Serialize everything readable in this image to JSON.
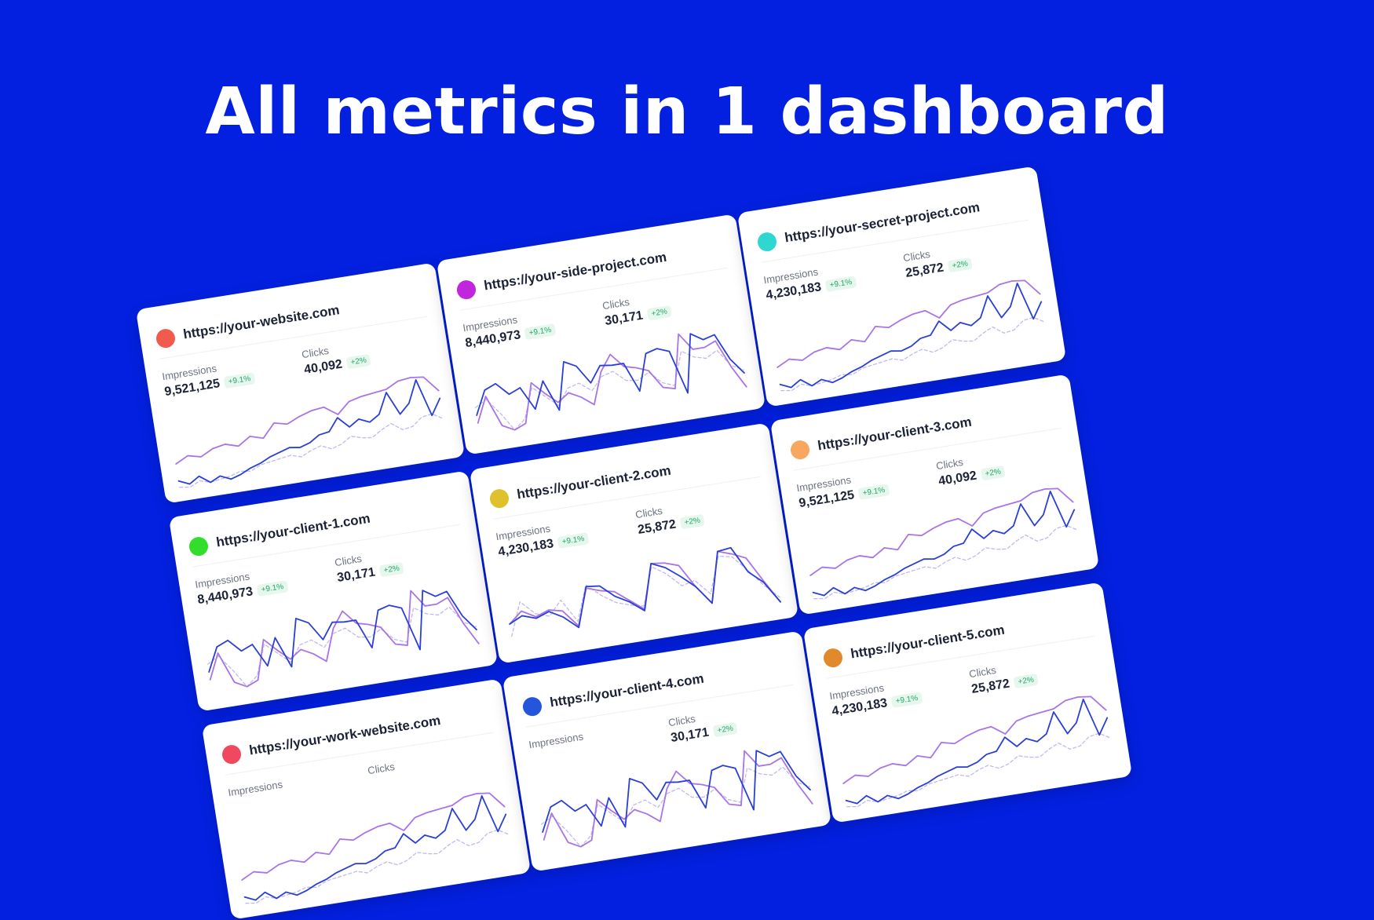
{
  "headline": "All metrics in 1 dashboard",
  "colors": {
    "background": "#0320E0",
    "clicks_line": "#2a3fd6",
    "impressions_line": "#a874e6",
    "comparison_line": "#b7b3ec",
    "badge_text": "#1ea868"
  },
  "metric_labels": {
    "impressions": "Impressions",
    "clicks": "Clicks"
  },
  "cards": [
    {
      "url": "https://your-website.com",
      "dot_color": "#f25a4e",
      "impressions": "9,521,125",
      "impressions_change": "+9.1%",
      "clicks": "40,092",
      "clicks_change": "+2%",
      "pattern": "A"
    },
    {
      "url": "https://your-side-project.com",
      "dot_color": "#c126dd",
      "impressions": "8,440,973",
      "impressions_change": "+9.1%",
      "clicks": "30,171",
      "clicks_change": "+2%",
      "pattern": "B"
    },
    {
      "url": "https://your-secret-project.com",
      "dot_color": "#2ed8d0",
      "impressions": "4,230,183",
      "impressions_change": "+9.1%",
      "clicks": "25,872",
      "clicks_change": "+2%",
      "pattern": "A"
    },
    {
      "url": "https://your-client-1.com",
      "dot_color": "#33dd2c",
      "impressions": "8,440,973",
      "impressions_change": "+9.1%",
      "clicks": "30,171",
      "clicks_change": "+2%",
      "pattern": "B"
    },
    {
      "url": "https://your-client-2.com",
      "dot_color": "#dfc12b",
      "impressions": "4,230,183",
      "impressions_change": "+9.1%",
      "clicks": "25,872",
      "clicks_change": "+2%",
      "pattern": "C"
    },
    {
      "url": "https://your-client-3.com",
      "dot_color": "#f7a85e",
      "impressions": "9,521,125",
      "impressions_change": "+9.1%",
      "clicks": "40,092",
      "clicks_change": "+2%",
      "pattern": "A"
    },
    {
      "url": "https://your-work-website.com",
      "dot_color": "#f0485e",
      "impressions": "",
      "impressions_change": "",
      "clicks": "",
      "clicks_change": "",
      "pattern": "A"
    },
    {
      "url": "https://your-client-4.com",
      "dot_color": "#2456dc",
      "impressions": "",
      "impressions_change": "",
      "clicks": "30,171",
      "clicks_change": "+2%",
      "pattern": "B"
    },
    {
      "url": "https://your-client-5.com",
      "dot_color": "#e08a2b",
      "impressions": "4,230,183",
      "impressions_change": "+9.1%",
      "clicks": "25,872",
      "clicks_change": "+2%",
      "pattern": "A"
    }
  ]
}
